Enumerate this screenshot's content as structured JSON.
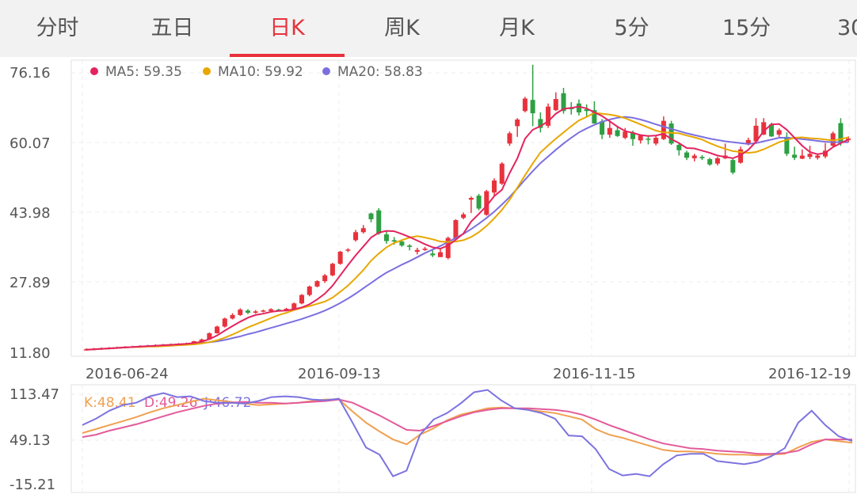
{
  "tabs": [
    {
      "label": "分时",
      "active": false
    },
    {
      "label": "五日",
      "active": false
    },
    {
      "label": "日K",
      "active": true
    },
    {
      "label": "周K",
      "active": false
    },
    {
      "label": "月K",
      "active": false
    },
    {
      "label": "5分",
      "active": false
    },
    {
      "label": "15分",
      "active": false
    },
    {
      "label": "30",
      "active": false
    }
  ],
  "colors": {
    "up": "#e8323c",
    "down": "#2ea043",
    "ma5": "#e3245f",
    "ma10": "#e8a700",
    "ma20": "#7b6fe0",
    "k": "#f0a050",
    "d": "#e35a9a",
    "j": "#7c73e0",
    "active_tab": "#e8323c"
  },
  "chart_data": [
    {
      "type": "candlestick",
      "y_ticks": [
        "76.16",
        "60.07",
        "43.98",
        "27.89",
        "11.80"
      ],
      "ylim": [
        11.8,
        76.16
      ],
      "x_ticks": [
        "2016-06-24",
        "2016-09-13",
        "2016-11-15",
        "2016-12-19"
      ],
      "legend": [
        {
          "key": "ma5",
          "label": "MA5: 59.35"
        },
        {
          "key": "ma10",
          "label": "MA10: 59.92"
        },
        {
          "key": "ma20",
          "label": "MA20: 58.83"
        }
      ],
      "candles": [
        [
          12.2,
          12.3,
          12.0,
          12.5
        ],
        [
          12.3,
          12.4,
          12.1,
          12.6
        ],
        [
          12.4,
          12.5,
          12.2,
          12.7
        ],
        [
          12.5,
          12.6,
          12.3,
          12.8
        ],
        [
          12.6,
          12.7,
          12.4,
          12.9
        ],
        [
          12.7,
          12.8,
          12.5,
          13.0
        ],
        [
          12.8,
          12.9,
          12.6,
          13.1
        ],
        [
          12.9,
          13.0,
          12.7,
          13.2
        ],
        [
          13.0,
          13.1,
          12.8,
          13.3
        ],
        [
          13.1,
          13.2,
          12.9,
          13.4
        ],
        [
          13.2,
          13.3,
          13.0,
          13.5
        ],
        [
          13.3,
          13.4,
          13.1,
          13.6
        ],
        [
          13.4,
          13.5,
          13.2,
          13.7
        ],
        [
          13.5,
          13.6,
          13.3,
          13.8
        ],
        [
          13.6,
          14.1,
          13.5,
          14.2
        ],
        [
          14.1,
          14.5,
          14.0,
          14.7
        ],
        [
          14.5,
          15.9,
          14.4,
          16.1
        ],
        [
          15.9,
          17.4,
          15.8,
          17.6
        ],
        [
          17.4,
          19.2,
          17.2,
          19.4
        ],
        [
          19.2,
          20.0,
          19.0,
          20.4
        ],
        [
          20.0,
          21.2,
          19.8,
          21.5
        ],
        [
          21.0,
          20.5,
          20.2,
          21.3
        ],
        [
          20.5,
          20.8,
          20.3,
          21.1
        ],
        [
          20.8,
          21.0,
          20.6,
          21.2
        ],
        [
          20.9,
          21.3,
          20.7,
          21.5
        ],
        [
          21.2,
          21.0,
          20.8,
          21.4
        ],
        [
          21.0,
          21.4,
          20.8,
          21.6
        ],
        [
          21.4,
          22.6,
          21.2,
          22.8
        ],
        [
          22.6,
          24.5,
          22.4,
          24.7
        ],
        [
          24.5,
          26.4,
          24.2,
          26.6
        ],
        [
          26.4,
          27.6,
          26.2,
          27.8
        ],
        [
          27.6,
          28.9,
          27.2,
          29.2
        ],
        [
          28.9,
          31.5,
          28.7,
          31.7
        ],
        [
          31.5,
          34.2,
          31.3,
          34.4
        ],
        [
          34.5,
          34.7,
          34.1,
          35.0
        ],
        [
          36.8,
          38.6,
          36.5,
          39.1
        ],
        [
          38.6,
          39.5,
          38.3,
          40.2
        ],
        [
          42.8,
          41.5,
          40.8,
          43.0
        ],
        [
          43.5,
          38.3,
          38.0,
          44.0
        ],
        [
          38.1,
          36.6,
          36.0,
          38.9
        ],
        [
          36.8,
          36.5,
          35.8,
          37.5
        ],
        [
          36.5,
          35.6,
          35.3,
          37.0
        ],
        [
          35.6,
          35.3,
          34.5,
          35.9
        ],
        [
          34.2,
          34.6,
          33.6,
          35.1
        ],
        [
          34.6,
          34.9,
          34.4,
          35.3
        ],
        [
          33.8,
          33.4,
          33.0,
          34.5
        ],
        [
          33.0,
          34.1,
          33.0,
          34.8
        ],
        [
          32.8,
          37.3,
          32.5,
          37.6
        ],
        [
          37.2,
          41.3,
          37.0,
          41.5
        ],
        [
          41.8,
          42.6,
          41.5,
          43.0
        ],
        [
          45.9,
          46.3,
          42.9,
          46.6
        ],
        [
          46.8,
          43.9,
          43.5,
          47.2
        ],
        [
          42.5,
          47.8,
          42.3,
          48.1
        ],
        [
          47.5,
          50.2,
          46.8,
          50.7
        ],
        [
          49.5,
          54.0,
          49.2,
          54.3
        ],
        [
          58.5,
          60.8,
          58.0,
          61.2
        ],
        [
          62.4,
          63.9,
          60.0,
          64.2
        ],
        [
          65.8,
          68.6,
          65.5,
          69.0
        ],
        [
          68.3,
          65.3,
          62.4,
          76.2
        ],
        [
          64.0,
          62.0,
          61.0,
          65.5
        ],
        [
          62.5,
          66.8,
          62.0,
          67.5
        ],
        [
          66.0,
          68.5,
          65.8,
          70.0
        ],
        [
          69.8,
          65.8,
          65.2,
          71.0
        ],
        [
          66.5,
          66.2,
          65.0,
          67.8
        ],
        [
          67.5,
          65.5,
          64.8,
          68.4
        ],
        [
          66.2,
          65.8,
          64.5,
          67.3
        ],
        [
          66.0,
          63.0,
          63.0,
          68.0
        ],
        [
          63.5,
          60.5,
          59.5,
          64.0
        ],
        [
          60.5,
          62.0,
          59.8,
          63.5
        ],
        [
          61.5,
          60.2,
          60.0,
          62.3
        ],
        [
          59.8,
          61.2,
          59.5,
          62.0
        ],
        [
          61.0,
          59.5,
          58.0,
          61.4
        ],
        [
          59.2,
          60.3,
          58.5,
          60.6
        ],
        [
          59.6,
          59.4,
          58.3,
          60.1
        ],
        [
          58.5,
          59.8,
          58.1,
          60.2
        ],
        [
          59.5,
          63.6,
          59.3,
          64.6
        ],
        [
          63.0,
          58.5,
          58.2,
          63.6
        ],
        [
          58.2,
          57.0,
          55.8,
          58.8
        ],
        [
          56.5,
          55.3,
          54.8,
          56.9
        ],
        [
          55.2,
          55.8,
          54.5,
          56.2
        ],
        [
          55.5,
          55.2,
          54.8,
          55.9
        ],
        [
          55.0,
          53.8,
          53.5,
          55.3
        ],
        [
          54.0,
          55.2,
          53.6,
          55.5
        ],
        [
          55.2,
          55.8,
          55.0,
          58.5
        ],
        [
          54.8,
          52.0,
          51.6,
          55.1
        ],
        [
          54.2,
          57.2,
          54.0,
          57.8
        ],
        [
          58.5,
          59.3,
          58.1,
          59.8
        ],
        [
          59.0,
          62.5,
          59.0,
          64.2
        ],
        [
          60.5,
          63.3,
          60.4,
          64.2
        ],
        [
          62.8,
          60.1,
          60.0,
          63.2
        ],
        [
          60.5,
          61.5,
          60.0,
          61.9
        ],
        [
          60.0,
          56.2,
          55.7,
          61.0
        ],
        [
          56.0,
          55.3,
          54.8,
          57.8
        ],
        [
          55.1,
          55.8,
          55.0,
          57.2
        ],
        [
          55.5,
          56.2,
          55.0,
          58.0
        ],
        [
          55.3,
          55.8,
          54.9,
          56.3
        ],
        [
          55.6,
          56.9,
          55.2,
          58.6
        ],
        [
          58.0,
          60.8,
          57.9,
          61.2
        ],
        [
          63.1,
          58.6,
          58.0,
          64.2
        ],
        [
          59.3,
          59.6,
          58.8,
          60.1
        ]
      ],
      "ma5": [
        12.2,
        12.3,
        12.4,
        12.5,
        12.6,
        12.7,
        12.8,
        12.9,
        13.0,
        13.1,
        13.2,
        13.3,
        13.4,
        13.5,
        13.7,
        14.0,
        14.6,
        15.4,
        16.5,
        17.5,
        18.5,
        19.4,
        20.0,
        20.3,
        20.7,
        20.9,
        21.0,
        21.3,
        21.7,
        22.4,
        23.5,
        24.8,
        26.6,
        28.9,
        31.2,
        33.4,
        35.4,
        37.4,
        38.5,
        38.9,
        38.8,
        38.2,
        37.5,
        36.7,
        35.9,
        35.2,
        34.9,
        35.6,
        36.9,
        38.3,
        41.0,
        42.7,
        44.5,
        46.7,
        48.1,
        51.9,
        55.2,
        59.6,
        61.6,
        62.4,
        63.5,
        65.2,
        66.3,
        66.5,
        66.8,
        66.4,
        65.5,
        64.7,
        63.5,
        62.3,
        61.3,
        60.9,
        60.4,
        60.2,
        60.3,
        60.7,
        59.5,
        58.6,
        57.5,
        57.4,
        56.9,
        56.4,
        55.8,
        55.5,
        55.2,
        55.9,
        57.1,
        58.9,
        61.3,
        62.8,
        62.9,
        61.6,
        59.8,
        58.0,
        56.6,
        56.1,
        56.4,
        57.7,
        58.6,
        59.4
      ],
      "ma10": [
        12.2,
        12.3,
        12.4,
        12.5,
        12.6,
        12.7,
        12.8,
        12.8,
        12.9,
        12.9,
        13.0,
        13.1,
        13.2,
        13.3,
        13.4,
        13.6,
        13.9,
        14.3,
        14.9,
        15.6,
        16.4,
        17.2,
        17.9,
        18.6,
        19.3,
        20.0,
        20.5,
        21.1,
        21.6,
        22.0,
        22.5,
        23.0,
        23.9,
        25.2,
        26.6,
        28.3,
        30.1,
        32.2,
        33.8,
        35.2,
        36.2,
        36.8,
        37.4,
        37.7,
        37.4,
        37.0,
        36.5,
        36.4,
        36.5,
        36.8,
        37.5,
        38.6,
        40.0,
        41.7,
        43.6,
        45.9,
        48.6,
        51.4,
        54.0,
        56.5,
        58.1,
        59.6,
        61.0,
        62.4,
        63.7,
        64.5,
        65.4,
        65.2,
        65.0,
        64.7,
        64.2,
        63.5,
        62.8,
        62.1,
        61.4,
        61.0,
        60.9,
        60.8,
        60.3,
        59.9,
        59.4,
        58.6,
        57.9,
        57.3,
        56.8,
        56.6,
        56.4,
        56.6,
        57.2,
        58.0,
        58.8,
        59.3,
        59.8,
        59.9,
        59.7,
        59.6,
        59.4,
        59.2,
        59.5,
        59.9
      ],
      "ma20": [
        12.2,
        12.3,
        12.4,
        12.5,
        12.6,
        12.7,
        12.8,
        12.9,
        13.0,
        13.1,
        13.2,
        13.3,
        13.4,
        13.5,
        13.6,
        13.7,
        13.9,
        14.1,
        14.4,
        14.8,
        15.2,
        15.7,
        16.1,
        16.6,
        17.1,
        17.6,
        18.1,
        18.6,
        19.1,
        19.7,
        20.3,
        21.0,
        21.8,
        22.7,
        23.7,
        24.8,
        26.0,
        27.2,
        28.4,
        29.5,
        30.4,
        31.3,
        32.1,
        33.0,
        33.9,
        34.7,
        35.5,
        36.4,
        37.3,
        38.2,
        39.3,
        40.5,
        41.8,
        43.2,
        44.8,
        46.5,
        48.4,
        50.4,
        52.3,
        54.1,
        55.6,
        57.1,
        58.5,
        59.8,
        61.0,
        61.9,
        62.7,
        63.4,
        63.9,
        64.3,
        64.5,
        64.3,
        63.9,
        63.4,
        62.8,
        62.3,
        61.8,
        61.3,
        60.8,
        60.4,
        60.0,
        59.6,
        59.3,
        59.0,
        58.8,
        58.6,
        58.4,
        58.6,
        59.0,
        59.4,
        59.8,
        59.8,
        59.7,
        59.5,
        59.3,
        59.1,
        58.9,
        58.8,
        58.8,
        58.8
      ]
    },
    {
      "type": "line",
      "y_ticks": [
        "113.47",
        "49.13",
        "-15.21"
      ],
      "ylim": [
        -15.21,
        113.47
      ],
      "legend": [
        {
          "key": "k",
          "label": "K:48.41"
        },
        {
          "key": "d",
          "label": "D:49.26"
        },
        {
          "key": "j",
          "label": "J:46.72"
        }
      ],
      "series": [
        {
          "key": "k",
          "values": [
            57,
            62,
            67,
            72,
            77,
            83,
            88,
            92,
            96,
            100,
            98,
            96,
            94,
            92,
            93,
            94,
            95,
            97,
            99,
            99,
            84,
            70,
            59,
            49,
            43,
            55,
            63,
            73,
            80,
            84,
            88,
            89,
            88,
            86,
            84,
            82,
            78,
            74,
            62,
            55,
            51,
            46,
            41,
            36,
            34,
            34,
            33,
            31,
            30,
            30,
            29,
            30,
            31,
            39,
            46,
            49,
            47,
            45
          ]
        },
        {
          "key": "d",
          "values": [
            52,
            55,
            60,
            64,
            68,
            73,
            78,
            83,
            87,
            91,
            94,
            95,
            96,
            95,
            95,
            94,
            95,
            96,
            97,
            99,
            95,
            87,
            79,
            70,
            61,
            60,
            66,
            72,
            78,
            83,
            86,
            88,
            88,
            88,
            87,
            86,
            84,
            80,
            74,
            67,
            61,
            55,
            49,
            44,
            41,
            38,
            37,
            35,
            34,
            33,
            31,
            31,
            32,
            35,
            43,
            49,
            49,
            49
          ]
        },
        {
          "key": "j",
          "values": [
            67,
            75,
            85,
            92,
            95,
            103,
            107,
            102,
            103,
            97,
            95,
            95,
            94,
            97,
            102,
            103,
            102,
            99,
            98,
            100,
            70,
            39,
            30,
            3,
            10,
            55,
            74,
            82,
            94,
            108,
            111,
            98,
            88,
            86,
            82,
            75,
            54,
            53,
            37,
            12,
            4,
            6,
            3,
            18,
            29,
            31,
            31,
            22,
            20,
            18,
            21,
            28,
            38,
            70,
            85,
            67,
            53,
            47
          ]
        }
      ]
    }
  ]
}
